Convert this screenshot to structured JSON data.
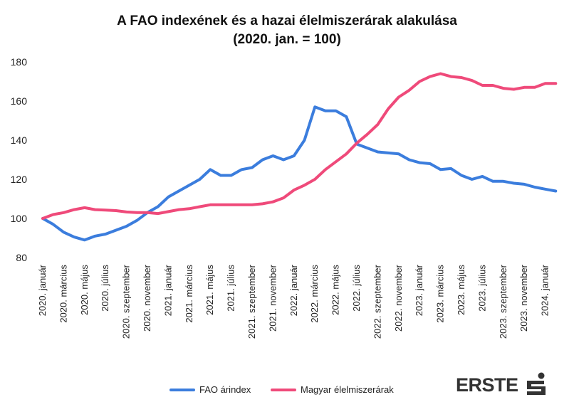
{
  "chart_data": {
    "type": "line",
    "title_line1": "A FAO indexének és a hazai élelmiszerárak alakulása",
    "title_line2": "(2020. jan. = 100)",
    "xlabel": "",
    "ylabel": "",
    "ylim": [
      80,
      180
    ],
    "yticks": [
      80,
      100,
      120,
      140,
      160,
      180
    ],
    "grid": false,
    "legend_position": "bottom",
    "x_tick_labels": [
      "2020. január",
      "2020. március",
      "2020. május",
      "2020. július",
      "2020. szeptember",
      "2020. november",
      "2021. január",
      "2021. március",
      "2021. május",
      "2021. július",
      "2021. szeptember",
      "2021. november",
      "2022. január",
      "2022. március",
      "2022. május",
      "2022. július",
      "2022. szeptember",
      "2022. november",
      "2023. január",
      "2023. március",
      "2023. május",
      "2023. július",
      "2023. szeptember",
      "2023. november",
      "2024. január"
    ],
    "n_months": 50,
    "series": [
      {
        "name": "FAO árindex",
        "color": "#3b7ddd",
        "values": [
          100,
          97,
          93,
          90.5,
          89,
          91,
          92,
          94,
          96,
          99,
          103,
          106,
          111,
          114,
          117,
          120,
          125,
          122,
          122,
          125,
          126,
          130,
          132,
          130,
          132,
          140,
          157,
          155,
          155,
          152,
          138,
          136,
          134,
          133.5,
          133,
          130,
          128.5,
          128,
          125,
          125.5,
          122,
          120,
          121.5,
          119,
          119,
          118,
          117.5,
          116,
          115,
          114
        ]
      },
      {
        "name": "Magyar élelmiszerárak",
        "color": "#ef4a7a",
        "values": [
          100,
          102,
          103,
          104.5,
          105.5,
          104.5,
          104.3,
          104,
          103.3,
          103,
          103,
          102.5,
          103.5,
          104.5,
          105,
          106,
          107,
          107,
          107,
          107,
          107,
          107.5,
          108.5,
          110.5,
          114.5,
          117,
          120,
          125,
          129,
          133,
          138.5,
          143,
          148,
          156,
          162,
          165.5,
          170,
          172.5,
          174,
          172.5,
          172,
          170.5,
          168,
          168,
          166.5,
          166,
          167,
          167,
          169,
          169
        ]
      }
    ]
  },
  "logo": {
    "text": "ERSTE"
  }
}
